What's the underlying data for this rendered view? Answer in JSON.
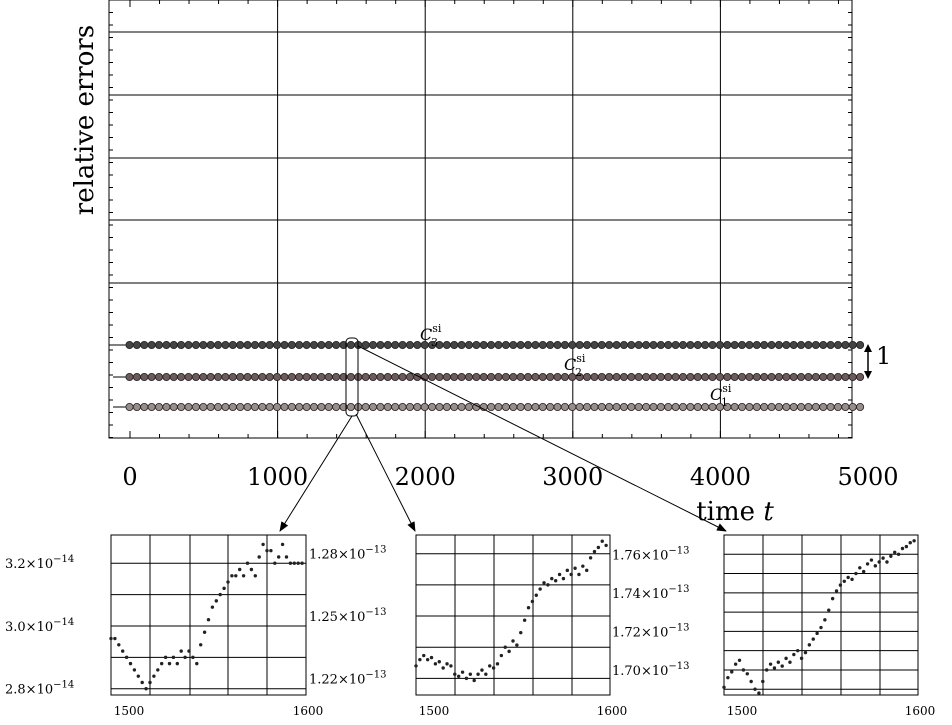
{
  "chart_data": [
    {
      "type": "scatter",
      "title": "",
      "xlabel": "time t",
      "ylabel": "relative errors",
      "xlim": [
        0,
        5000
      ],
      "xticks": [
        "0",
        "1000",
        "2000",
        "3000",
        "4000",
        "5000"
      ],
      "grid": true,
      "scale_marker": "1",
      "series": [
        {
          "name": "C3si",
          "label_base": "C",
          "label_sub": "3",
          "label_sup": "si",
          "color": "#444444",
          "level": 3
        },
        {
          "name": "C2si",
          "label_base": "C",
          "label_sub": "2",
          "label_sup": "si",
          "color": "#6e5a5a",
          "level": 2
        },
        {
          "name": "C1si",
          "label_base": "C",
          "label_sub": "1",
          "label_sup": "si",
          "color": "#9a8c8c",
          "level": 1
        }
      ],
      "x": [
        0,
        50,
        100,
        150,
        200,
        250,
        300,
        350,
        400,
        450,
        500,
        550,
        600,
        650,
        700,
        750,
        800,
        850,
        900,
        950,
        1000,
        1050,
        1100,
        1150,
        1200,
        1250,
        1300,
        1350,
        1400,
        1450,
        1500,
        1550,
        1600,
        1650,
        1700,
        1750,
        1800,
        1850,
        1900,
        1950,
        2000,
        2050,
        2100,
        2150,
        2200,
        2250,
        2300,
        2350,
        2400,
        2450,
        2500,
        2550,
        2600,
        2650,
        2700,
        2750,
        2800,
        2850,
        2900,
        2950,
        3000,
        3050,
        3100,
        3150,
        3200,
        3250,
        3300,
        3350,
        3400,
        3450,
        3500,
        3550,
        3600,
        3650,
        3700,
        3750,
        3800,
        3850,
        3900,
        3950,
        4000,
        4050,
        4100,
        4150,
        4200,
        4250,
        4300,
        4350,
        4400,
        4450,
        4500,
        4550,
        4600,
        4650,
        4700,
        4750,
        4800,
        4850,
        4900,
        4950
      ]
    },
    {
      "type": "scatter",
      "title": "",
      "series_ref": "C1si",
      "xlim": [
        1500,
        1600
      ],
      "xticks": [
        "1500",
        "1600"
      ],
      "ylim": [
        2.78e-14,
        3.29e-14
      ],
      "yticks": [
        {
          "value": 2.8e-14,
          "mant": "2.8",
          "exp": "−14"
        },
        {
          "value": 3e-14,
          "mant": "3.0",
          "exp": "−14"
        },
        {
          "value": 3.2e-14,
          "mant": "3.2",
          "exp": "−14"
        }
      ],
      "points": [
        [
          1500,
          2.96e-14
        ],
        [
          1502,
          2.96e-14
        ],
        [
          1504,
          2.94e-14
        ],
        [
          1506,
          2.92e-14
        ],
        [
          1508,
          2.9e-14
        ],
        [
          1510,
          2.88e-14
        ],
        [
          1512,
          2.86e-14
        ],
        [
          1514,
          2.84e-14
        ],
        [
          1516,
          2.82e-14
        ],
        [
          1518,
          2.8e-14
        ],
        [
          1520,
          2.82e-14
        ],
        [
          1522,
          2.84e-14
        ],
        [
          1524,
          2.86e-14
        ],
        [
          1526,
          2.88e-14
        ],
        [
          1528,
          2.9e-14
        ],
        [
          1530,
          2.88e-14
        ],
        [
          1532,
          2.9e-14
        ],
        [
          1534,
          2.88e-14
        ],
        [
          1536,
          2.92e-14
        ],
        [
          1538,
          2.9e-14
        ],
        [
          1540,
          2.92e-14
        ],
        [
          1542,
          2.9e-14
        ],
        [
          1544,
          2.88e-14
        ],
        [
          1546,
          2.94e-14
        ],
        [
          1548,
          2.98e-14
        ],
        [
          1550,
          3.02e-14
        ],
        [
          1552,
          3.06e-14
        ],
        [
          1554,
          3.08e-14
        ],
        [
          1556,
          3.1e-14
        ],
        [
          1558,
          3.12e-14
        ],
        [
          1560,
          3.14e-14
        ],
        [
          1562,
          3.16e-14
        ],
        [
          1564,
          3.16e-14
        ],
        [
          1566,
          3.18e-14
        ],
        [
          1568,
          3.16e-14
        ],
        [
          1570,
          3.2e-14
        ],
        [
          1572,
          3.18e-14
        ],
        [
          1574,
          3.16e-14
        ],
        [
          1576,
          3.22e-14
        ],
        [
          1578,
          3.26e-14
        ],
        [
          1580,
          3.24e-14
        ],
        [
          1582,
          3.24e-14
        ],
        [
          1584,
          3.2e-14
        ],
        [
          1586,
          3.22e-14
        ],
        [
          1588,
          3.26e-14
        ],
        [
          1590,
          3.22e-14
        ],
        [
          1592,
          3.2e-14
        ],
        [
          1594,
          3.2e-14
        ],
        [
          1596,
          3.2e-14
        ],
        [
          1598,
          3.2e-14
        ]
      ]
    },
    {
      "type": "scatter",
      "title": "",
      "series_ref": "C2si",
      "xlim": [
        1500,
        1600
      ],
      "xticks": [
        "1500",
        "1600"
      ],
      "ylim": [
        1.212e-13,
        1.289e-13
      ],
      "yticks": [
        {
          "value": 1.22e-13,
          "mant": "1.22",
          "exp": "−13"
        },
        {
          "value": 1.25e-13,
          "mant": "1.25",
          "exp": "−13"
        },
        {
          "value": 1.28e-13,
          "mant": "1.28",
          "exp": "−13"
        }
      ],
      "points": [
        [
          1500,
          1.226e-13
        ],
        [
          1502,
          1.229e-13
        ],
        [
          1504,
          1.231e-13
        ],
        [
          1506,
          1.229e-13
        ],
        [
          1508,
          1.23e-13
        ],
        [
          1510,
          1.227e-13
        ],
        [
          1512,
          1.228e-13
        ],
        [
          1514,
          1.225e-13
        ],
        [
          1516,
          1.227e-13
        ],
        [
          1518,
          1.226e-13
        ],
        [
          1520,
          1.222e-13
        ],
        [
          1522,
          1.221e-13
        ],
        [
          1524,
          1.223e-13
        ],
        [
          1526,
          1.22e-13
        ],
        [
          1528,
          1.222e-13
        ],
        [
          1530,
          1.219e-13
        ],
        [
          1532,
          1.222e-13
        ],
        [
          1534,
          1.224e-13
        ],
        [
          1536,
          1.222e-13
        ],
        [
          1538,
          1.226e-13
        ],
        [
          1540,
          1.225e-13
        ],
        [
          1542,
          1.227e-13
        ],
        [
          1544,
          1.231e-13
        ],
        [
          1546,
          1.235e-13
        ],
        [
          1548,
          1.233e-13
        ],
        [
          1550,
          1.238e-13
        ],
        [
          1552,
          1.236e-13
        ],
        [
          1554,
          1.242e-13
        ],
        [
          1556,
          1.248e-13
        ],
        [
          1558,
          1.254e-13
        ],
        [
          1560,
          1.257e-13
        ],
        [
          1562,
          1.26e-13
        ],
        [
          1564,
          1.263e-13
        ],
        [
          1566,
          1.266e-13
        ],
        [
          1568,
          1.265e-13
        ],
        [
          1570,
          1.268e-13
        ],
        [
          1572,
          1.267e-13
        ],
        [
          1574,
          1.27e-13
        ],
        [
          1576,
          1.268e-13
        ],
        [
          1578,
          1.272e-13
        ],
        [
          1580,
          1.27e-13
        ],
        [
          1582,
          1.273e-13
        ],
        [
          1584,
          1.27e-13
        ],
        [
          1586,
          1.274e-13
        ],
        [
          1588,
          1.272e-13
        ],
        [
          1590,
          1.278e-13
        ],
        [
          1592,
          1.281e-13
        ],
        [
          1594,
          1.283e-13
        ],
        [
          1596,
          1.286e-13
        ],
        [
          1598,
          1.284e-13
        ]
      ]
    },
    {
      "type": "scatter",
      "title": "",
      "series_ref": "C3si",
      "xlim": [
        1500,
        1600
      ],
      "xticks": [
        "1500",
        "1600"
      ],
      "ylim": [
        1.687e-13,
        1.77e-13
      ],
      "yticks": [
        {
          "value": 1.7e-13,
          "mant": "1.70",
          "exp": "−13"
        },
        {
          "value": 1.72e-13,
          "mant": "1.72",
          "exp": "−13"
        },
        {
          "value": 1.74e-13,
          "mant": "1.74",
          "exp": "−13"
        },
        {
          "value": 1.76e-13,
          "mant": "1.76",
          "exp": "−13"
        }
      ],
      "points": [
        [
          1500,
          1.691e-13
        ],
        [
          1502,
          1.696e-13
        ],
        [
          1504,
          1.699e-13
        ],
        [
          1506,
          1.703e-13
        ],
        [
          1508,
          1.705e-13
        ],
        [
          1510,
          1.7e-13
        ],
        [
          1512,
          1.698e-13
        ],
        [
          1514,
          1.694e-13
        ],
        [
          1516,
          1.69e-13
        ],
        [
          1518,
          1.688e-13
        ],
        [
          1520,
          1.694e-13
        ],
        [
          1522,
          1.7e-13
        ],
        [
          1524,
          1.703e-13
        ],
        [
          1526,
          1.701e-13
        ],
        [
          1528,
          1.704e-13
        ],
        [
          1530,
          1.702e-13
        ],
        [
          1532,
          1.706e-13
        ],
        [
          1534,
          1.704e-13
        ],
        [
          1536,
          1.708e-13
        ],
        [
          1538,
          1.71e-13
        ],
        [
          1540,
          1.706e-13
        ],
        [
          1542,
          1.709e-13
        ],
        [
          1544,
          1.713e-13
        ],
        [
          1546,
          1.716e-13
        ],
        [
          1548,
          1.719e-13
        ],
        [
          1550,
          1.722e-13
        ],
        [
          1552,
          1.726e-13
        ],
        [
          1554,
          1.731e-13
        ],
        [
          1556,
          1.737e-13
        ],
        [
          1558,
          1.741e-13
        ],
        [
          1560,
          1.744e-13
        ],
        [
          1562,
          1.746e-13
        ],
        [
          1564,
          1.748e-13
        ],
        [
          1566,
          1.747e-13
        ],
        [
          1568,
          1.75e-13
        ],
        [
          1570,
          1.753e-13
        ],
        [
          1572,
          1.751e-13
        ],
        [
          1574,
          1.755e-13
        ],
        [
          1576,
          1.757e-13
        ],
        [
          1578,
          1.754e-13
        ],
        [
          1580,
          1.756e-13
        ],
        [
          1582,
          1.758e-13
        ],
        [
          1584,
          1.756e-13
        ],
        [
          1586,
          1.759e-13
        ],
        [
          1588,
          1.761e-13
        ],
        [
          1590,
          1.76e-13
        ],
        [
          1592,
          1.763e-13
        ],
        [
          1594,
          1.764e-13
        ],
        [
          1596,
          1.766e-13
        ],
        [
          1598,
          1.767e-13
        ]
      ]
    }
  ]
}
